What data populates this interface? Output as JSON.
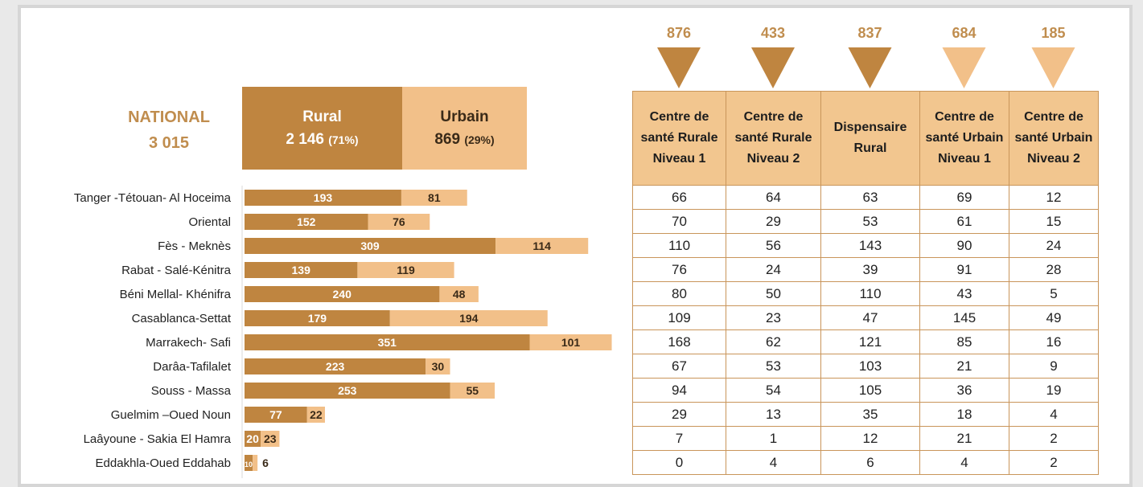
{
  "national": {
    "label": "NATIONAL",
    "total": "3 015"
  },
  "summary": {
    "rural": {
      "label": "Rural",
      "value": "2 146",
      "pct": "(71%)"
    },
    "urbain": {
      "label": "Urbain",
      "value": "869",
      "pct": "(29%)"
    }
  },
  "colors": {
    "rural": "#bf8540",
    "urbain": "#f2c089",
    "total_accent": "#c08d4e"
  },
  "chart_data": [
    {
      "type": "bar",
      "orientation": "horizontal",
      "stacked": true,
      "categories": [
        "Tanger -Tétouan- Al Hoceima",
        "Oriental",
        "Fès - Meknès",
        "Rabat - Salé-Kénitra",
        "Béni Mellal- Khénifra",
        "Casablanca-Settat",
        "Marrakech- Safi",
        "Darâa-Tafilalet",
        "Souss - Massa",
        "Guelmim –Oued Noun",
        "Laâyoune - Sakia El Hamra",
        "Eddakhla-Oued Eddahab"
      ],
      "series": [
        {
          "name": "Rural",
          "values": [
            193,
            152,
            309,
            139,
            240,
            179,
            351,
            223,
            253,
            77,
            20,
            10
          ]
        },
        {
          "name": "Urbain",
          "values": [
            81,
            76,
            114,
            119,
            48,
            194,
            101,
            30,
            55,
            22,
            23,
            6
          ]
        }
      ]
    },
    {
      "type": "table",
      "columns": [
        "Centre de santé Rurale Niveau 1",
        "Centre de santé Rurale Niveau 2",
        "Dispensaire Rural",
        "Centre de santé Urbain Niveau 1",
        "Centre de santé Urbain Niveau 2"
      ],
      "totals": [
        876,
        433,
        837,
        684,
        185
      ],
      "total_colors": [
        "#bf8540",
        "#bf8540",
        "#bf8540",
        "#f2c089",
        "#f2c089"
      ],
      "rows": [
        [
          66,
          64,
          63,
          69,
          12
        ],
        [
          70,
          29,
          53,
          61,
          15
        ],
        [
          110,
          56,
          143,
          90,
          24
        ],
        [
          76,
          24,
          39,
          91,
          28
        ],
        [
          80,
          50,
          110,
          43,
          5
        ],
        [
          109,
          23,
          47,
          145,
          49
        ],
        [
          168,
          62,
          121,
          85,
          16
        ],
        [
          67,
          53,
          103,
          21,
          9
        ],
        [
          94,
          54,
          105,
          36,
          19
        ],
        [
          29,
          13,
          35,
          18,
          4
        ],
        [
          7,
          1,
          12,
          21,
          2
        ],
        [
          0,
          4,
          6,
          4,
          2
        ]
      ]
    }
  ]
}
